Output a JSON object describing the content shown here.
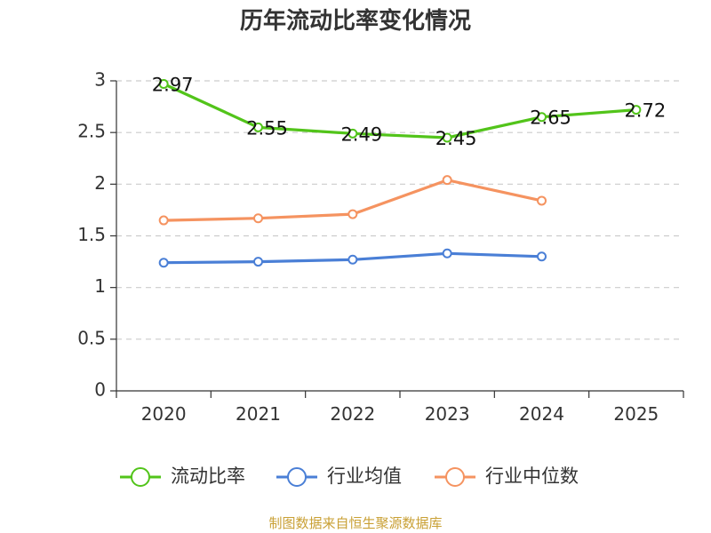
{
  "chart_data": {
    "type": "line",
    "title": "历年流动比率变化情况",
    "categories": [
      "2020",
      "2021",
      "2022",
      "2023",
      "2024",
      "2025"
    ],
    "ylim": [
      0,
      3
    ],
    "yticks": [
      "0",
      "0.5",
      "1",
      "1.5",
      "2",
      "2.5",
      "3"
    ],
    "grid": true,
    "legend_position": "bottom",
    "series": [
      {
        "name": "流动比率",
        "color": "#52c41a",
        "values": [
          2.97,
          2.55,
          2.49,
          2.45,
          2.65,
          2.72
        ],
        "labels": [
          "2.97",
          "2.55",
          "2.49",
          "2.45",
          "2.65",
          "2.72"
        ]
      },
      {
        "name": "行业均值",
        "color": "#4a7fd6",
        "values": [
          1.24,
          1.25,
          1.27,
          1.33,
          1.3,
          null
        ]
      },
      {
        "name": "行业中位数",
        "color": "#f59360",
        "values": [
          1.65,
          1.67,
          1.71,
          2.04,
          1.84,
          null
        ]
      }
    ]
  },
  "footer": {
    "source": "制图数据来自恒生聚源数据库"
  }
}
